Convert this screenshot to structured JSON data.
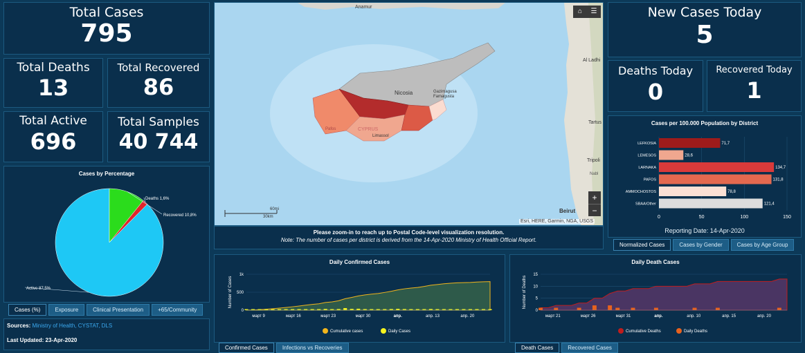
{
  "stats": {
    "total_cases": {
      "label": "Total Cases",
      "value": "795"
    },
    "total_deaths": {
      "label": "Total Deaths",
      "value": "13"
    },
    "total_recovered": {
      "label": "Total Recovered",
      "value": "86"
    },
    "total_active": {
      "label": "Total Active",
      "value": "696"
    },
    "total_samples": {
      "label": "Total Samples",
      "value": "40 744"
    },
    "new_cases_today": {
      "label": "New Cases Today",
      "value": "5"
    },
    "deaths_today": {
      "label": "Deaths Today",
      "value": "0"
    },
    "recovered_today": {
      "label": "Recovered Today",
      "value": "1"
    }
  },
  "pie": {
    "title": "Cases by Percentage",
    "colors": [
      "#1ec8f5",
      "#2bdc1c",
      "#e0252b"
    ],
    "chart_data": {
      "type": "pie",
      "title": "Cases by Percentage",
      "labels": [
        "Active 87,5%",
        "Recovered 10,8%",
        "Deaths 1,6%"
      ],
      "values": [
        87.5,
        10.8,
        1.6
      ]
    },
    "tabs": [
      "Cases (%)",
      "Exposure",
      "Clinical Presentation",
      "+65/Community"
    ]
  },
  "sources": {
    "label": "Sources:",
    "links": "Ministry of Health, CYSTAT, DLS",
    "updated": "Last Updated: 23-Apr-2020"
  },
  "map": {
    "labels": {
      "amane": "Anamur",
      "nicosia": "Nicosia",
      "famagusta": "Gazimagusa Famagusta",
      "cyprus": "CYPRUS",
      "limassol": "Limassol",
      "pafos": "Pafos",
      "al_ladhi": "Al Ladhi",
      "tartus": "Tartus",
      "tripoli": "Tripoli",
      "beirut": "Beirut",
      "nabi": "Nabl"
    },
    "scale_top": "60mi",
    "scale_bottom": "30km",
    "attribution": "Esri, HERE, Garmin, NGA, USGS",
    "zoom_in": "+",
    "zoom_out": "−",
    "notice": "Please zoom-in to reach up to Postal Code-level visualization resolution.",
    "note": "Note: The number of cases per district is derived from the 14-Apr-2020 Ministry of Health Official Report."
  },
  "district_chart": {
    "title": "Cases per 100.000 Population by District",
    "reporting_date": "Reporting Date: 14-Apr-2020",
    "chart_data": {
      "type": "bar",
      "orientation": "horizontal",
      "title": "Cases per 100.000 Population by District",
      "categories": [
        "LEFKOSIA",
        "LEMESOS",
        "LARNAKA",
        "PAFOS",
        "AMMOCHOSTOS",
        "SBAA/Other"
      ],
      "values": [
        71.7,
        28.6,
        134.7,
        131.8,
        78.8,
        121.4
      ],
      "value_labels": [
        "71,7",
        "28,6",
        "134,7",
        "131,8",
        "78,8",
        "121,4"
      ],
      "colors": [
        "#9e1b1b",
        "#f0a78f",
        "#d93a3a",
        "#e4694f",
        "#fbe0d4",
        "#dcdcdc"
      ],
      "xlim": [
        0,
        150
      ],
      "xticks": [
        "0",
        "50",
        "100",
        "150"
      ]
    },
    "tabs": [
      "Normalized Cases",
      "Cases by Gender",
      "Cases by Age Group"
    ]
  },
  "confirmed_chart": {
    "title": "Daily Confirmed Cases",
    "colors": {
      "cumulative": "#f2b51c",
      "daily": "#f5f31e"
    },
    "chart_data": {
      "type": "area",
      "title": "Daily Confirmed Cases",
      "ylabel": "Number of Cases",
      "yticks": [
        "0",
        "500",
        "1k"
      ],
      "ylim": [
        0,
        1000
      ],
      "xticks": [
        "март 9",
        "март 16",
        "март 23",
        "март 30",
        "апр.",
        "апр. 13",
        "апр. 20"
      ],
      "legend": [
        "Cumulative cases",
        "Daily Cases"
      ],
      "series": [
        {
          "name": "Cumulative cases",
          "values": [
            2,
            6,
            14,
            26,
            40,
            58,
            75,
            95,
            116,
            140,
            162,
            179,
            214,
            230,
            262,
            320,
            356,
            396,
            426,
            446,
            465,
            494,
            526,
            564,
            595,
            616,
            633,
            662,
            695,
            715,
            735,
            750,
            761,
            767,
            772,
            784,
            790,
            795
          ]
        },
        {
          "name": "Daily Cases",
          "values": [
            2,
            4,
            8,
            12,
            14,
            18,
            17,
            20,
            21,
            24,
            22,
            17,
            35,
            16,
            32,
            58,
            36,
            40,
            30,
            20,
            19,
            29,
            32,
            38,
            31,
            21,
            17,
            29,
            33,
            20,
            20,
            15,
            11,
            6,
            5,
            12,
            6,
            5
          ]
        }
      ]
    },
    "tabs": [
      "Confirmed Cases",
      "Infections vs Recoveries"
    ]
  },
  "death_chart": {
    "title": "Daily Death Cases",
    "colors": {
      "cumulative": "#c01d1d",
      "daily": "#e8621e"
    },
    "chart_data": {
      "type": "area",
      "title": "Daily Death Cases",
      "ylabel": "Number of Deaths",
      "yticks": [
        "0",
        "5",
        "10",
        "15"
      ],
      "ylim": [
        0,
        15
      ],
      "xticks": [
        "март 21",
        "март 26",
        "март 31",
        "апр.",
        "апр. 10",
        "апр. 15",
        "апр. 20"
      ],
      "legend": [
        "Cumulative Deaths",
        "Daily Deaths"
      ],
      "series": [
        {
          "name": "Cumulative Deaths",
          "values": [
            1,
            1,
            2,
            2,
            2,
            3,
            3,
            5,
            5,
            7,
            8,
            8,
            9,
            9,
            9,
            10,
            10,
            10,
            10,
            10,
            11,
            11,
            11,
            12,
            12,
            12,
            12,
            12,
            12,
            12,
            12,
            13,
            13
          ]
        },
        {
          "name": "Daily Deaths",
          "values": [
            1,
            0,
            1,
            0,
            0,
            1,
            0,
            2,
            0,
            2,
            1,
            0,
            1,
            0,
            0,
            1,
            0,
            0,
            0,
            0,
            1,
            0,
            0,
            1,
            0,
            0,
            0,
            0,
            0,
            0,
            0,
            1,
            0
          ]
        }
      ]
    },
    "tabs": [
      "Death Cases",
      "Recovered Cases"
    ]
  }
}
